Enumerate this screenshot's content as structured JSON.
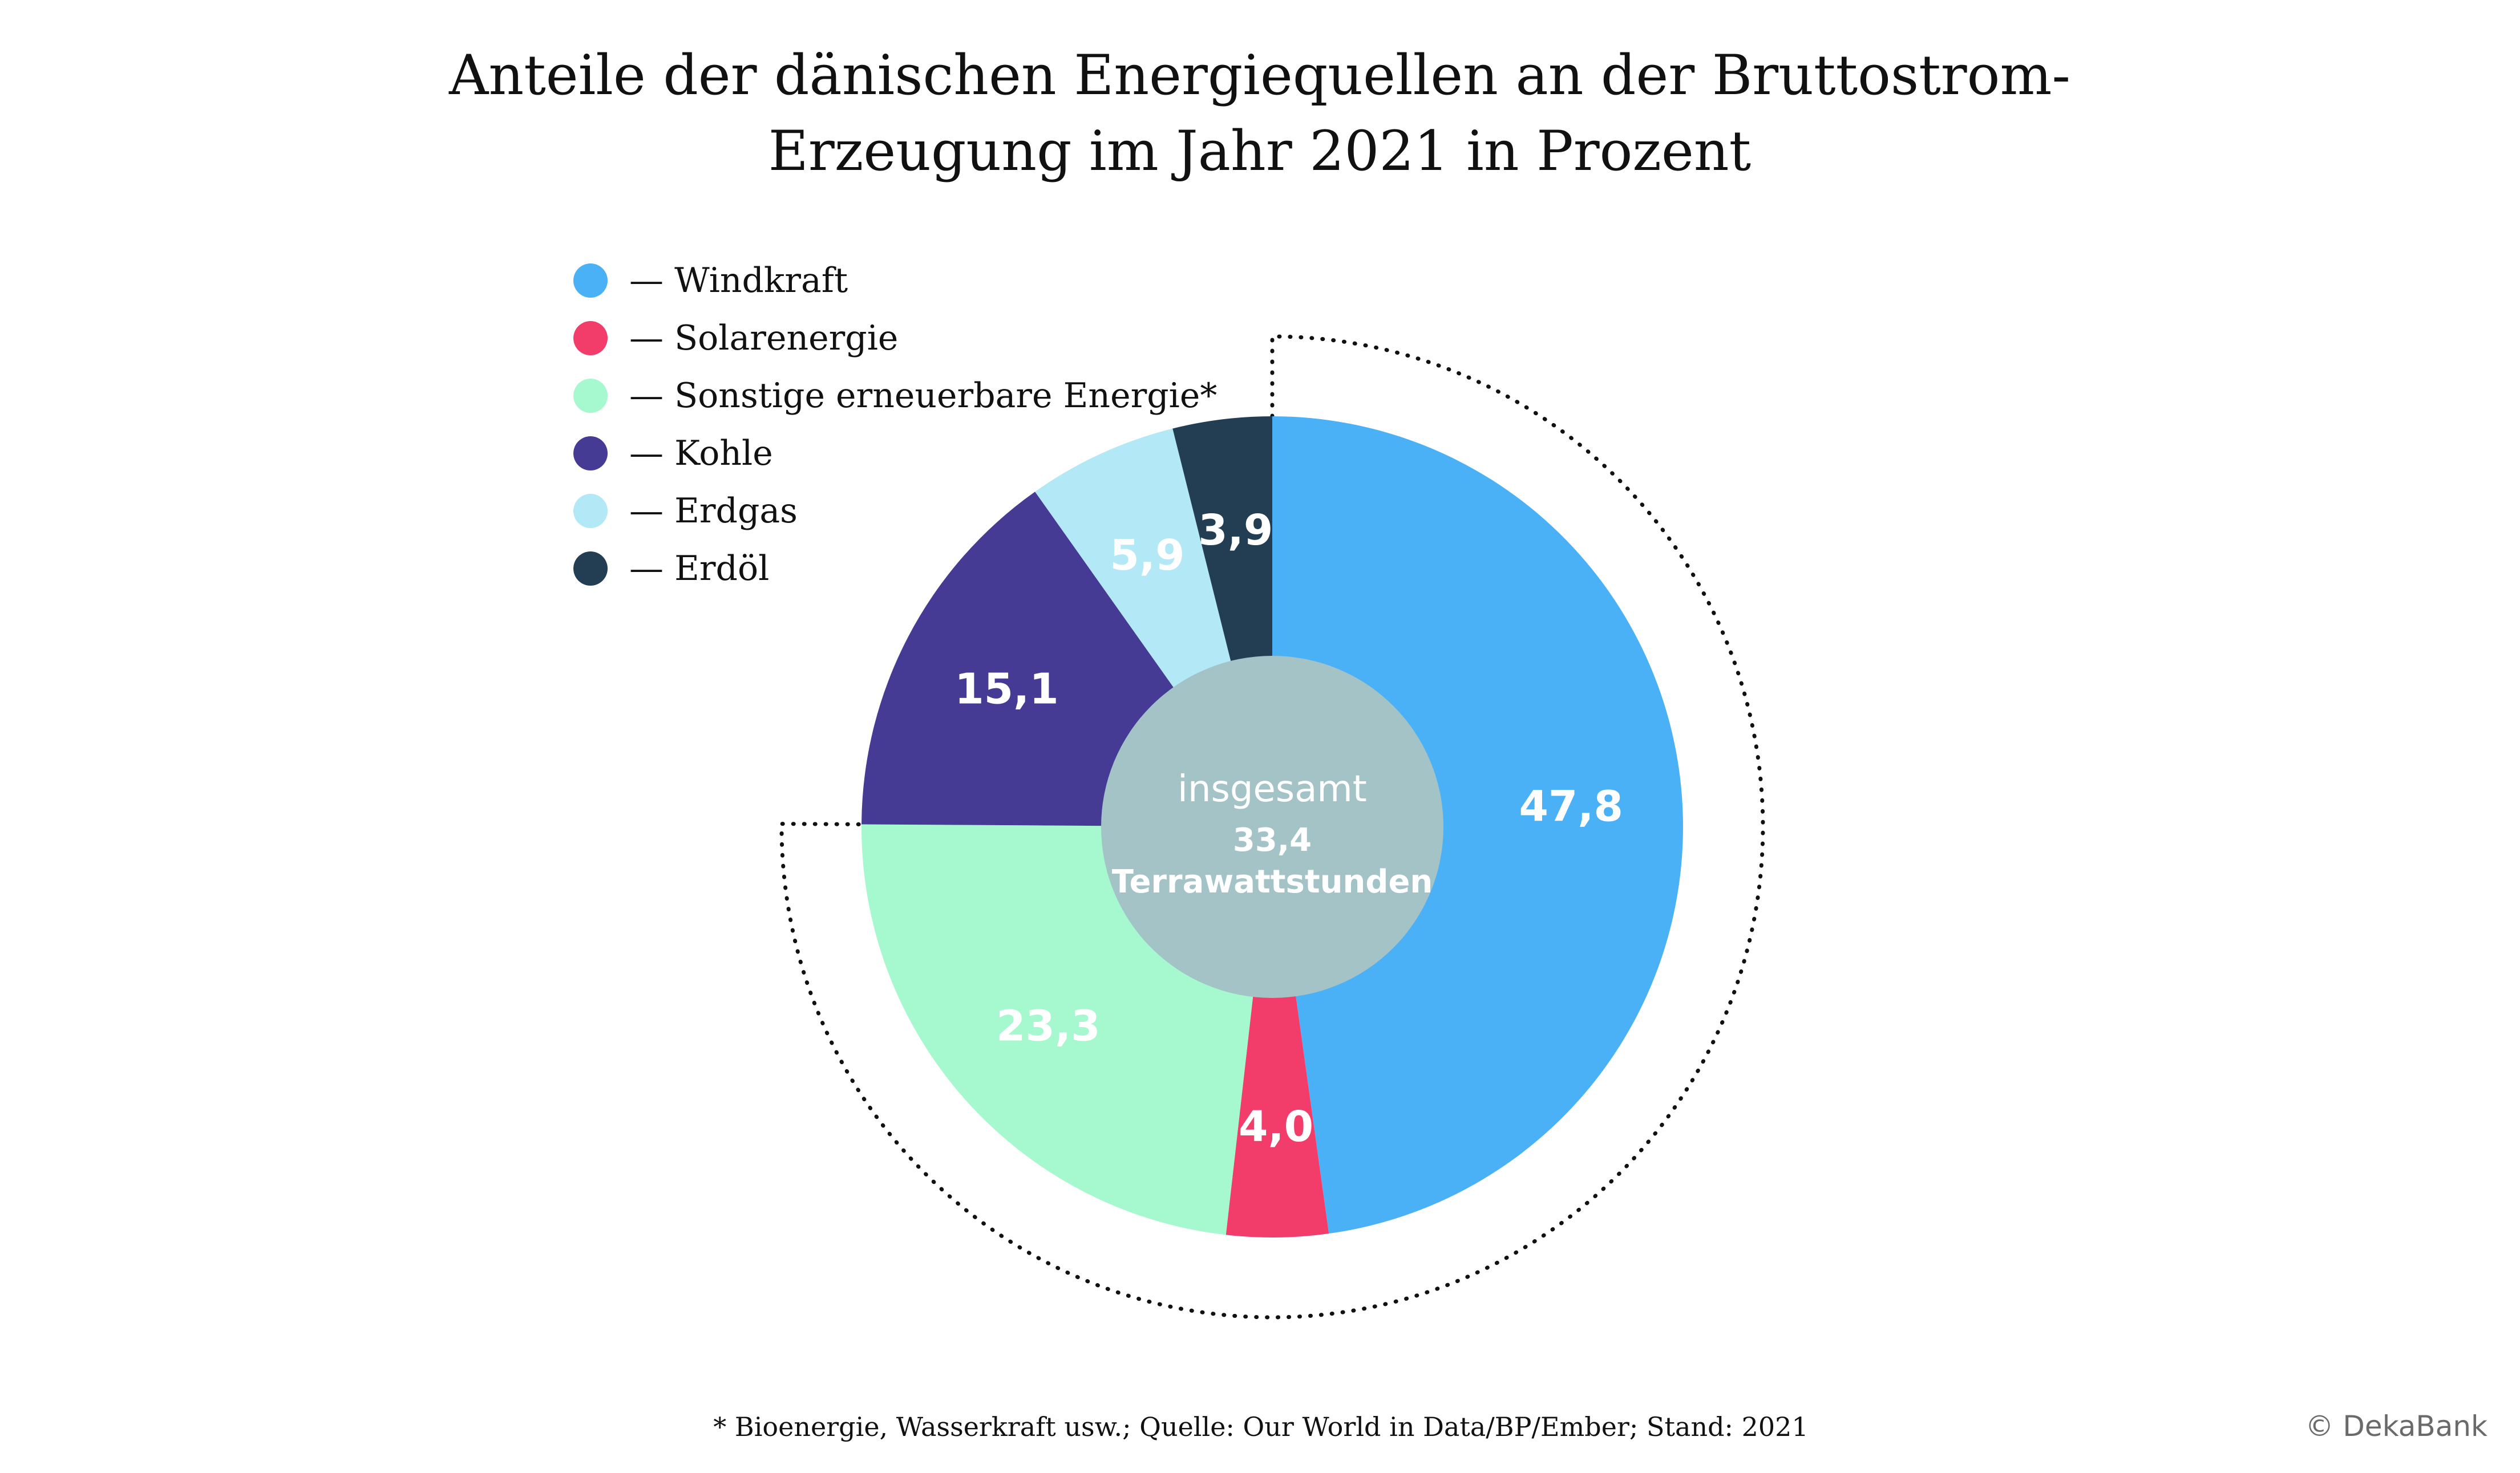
{
  "chart_data": {
    "type": "pie",
    "title_lines": [
      "Anteile der dänischen Energiequellen an der Bruttostrom-",
      "Erzeugung im Jahr 2021 in Prozent"
    ],
    "categories": [
      "Windkraft",
      "Solarenergie",
      "Sonstige erneuerbare Energie*",
      "Kohle",
      "Erdgas",
      "Erdöl"
    ],
    "values": [
      47.8,
      4.0,
      23.3,
      15.1,
      5.9,
      3.9
    ],
    "value_labels": [
      "47,8",
      "4,0",
      "23,3",
      "15,1",
      "5,9",
      "3,9"
    ],
    "colors": [
      "#4BB1F7",
      "#F23D6A",
      "#A6F8CF",
      "#463B94",
      "#B3E8F7",
      "#233D53"
    ],
    "label_colors": [
      "#ffffff",
      "#ffffff",
      "#ffffff",
      "#ffffff",
      "#ffffff",
      "#ffffff"
    ],
    "legend_position": "top-left",
    "center": {
      "caption": "insgesamt",
      "value": "33,4",
      "unit": "Terrawattstunden",
      "color": "#A3C3C7"
    },
    "renewable_bracket": "dotted",
    "legend_dash": "—"
  },
  "footnote": "* Bioenergie, Wasserkraft usw.; Quelle: Our World in Data/BP/Ember; Stand: 2021",
  "copyright": "© DekaBank"
}
